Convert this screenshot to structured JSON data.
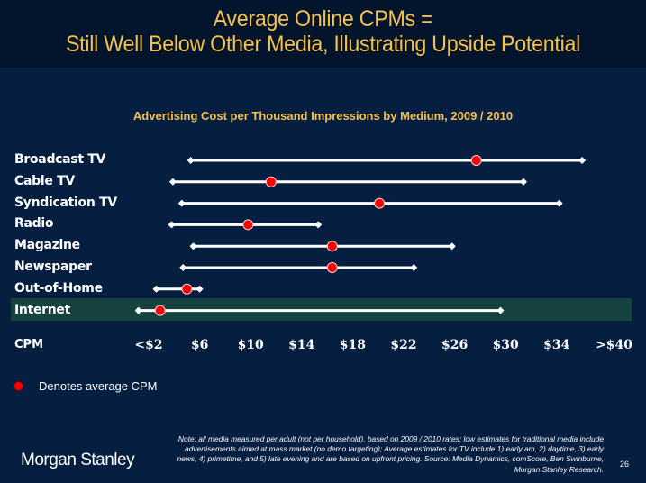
{
  "header": {
    "title_line1": "Average Online CPMs =",
    "title_line2": "Still Well Below Other Media, Illustrating Upside Potential"
  },
  "chart_data": {
    "type": "range-dot",
    "title": "Advertising Cost per Thousand Impressions by Medium, 2009 / 2010",
    "xlabel": "CPM",
    "x_unit": "USD",
    "xlim": [
      2,
      38
    ],
    "x_ticks": [
      {
        "label": "<$2",
        "value": 2
      },
      {
        "label": "$6",
        "value": 6
      },
      {
        "label": "$10",
        "value": 10
      },
      {
        "label": "$14",
        "value": 14
      },
      {
        "label": "$18",
        "value": 18
      },
      {
        "label": "$22",
        "value": 22
      },
      {
        "label": "$26",
        "value": 26
      },
      {
        "label": "$30",
        "value": 30
      },
      {
        "label": "$34",
        "value": 34
      },
      {
        "label": ">$40",
        "value": 38.5
      }
    ],
    "grid": false,
    "categories": [
      "Broadcast TV",
      "Cable TV",
      "Syndication TV",
      "Radio",
      "Magazine",
      "Newspaper",
      "Out-of-Home",
      "Internet"
    ],
    "series": [
      {
        "name": "Low",
        "values": [
          5.3,
          3.9,
          4.6,
          3.8,
          5.5,
          4.7,
          2.6,
          1.2
        ]
      },
      {
        "name": "Average CPM",
        "values": [
          27.7,
          11.6,
          20.1,
          9.8,
          16.4,
          16.4,
          5.0,
          2.9
        ]
      },
      {
        "name": "High",
        "values": [
          36.0,
          31.4,
          34.2,
          15.3,
          25.8,
          22.8,
          6.0,
          29.6
        ]
      }
    ],
    "highlighted_category": "Internet",
    "legend": {
      "label": "Denotes average CPM",
      "placement": "bottom-left"
    }
  },
  "colors": {
    "title": "#f5c14a",
    "avg_dot": "#ff0000",
    "range_line": "#ffffff",
    "highlight_band": "#15413f",
    "background": "#061e40"
  },
  "footer": {
    "logo": "Morgan Stanley",
    "note": "Note: all media measured per adult (not per household), based on 2009 / 2010 rates; low estimates for traditional media include advertisements aimed at mass market (no demo targeting); Average estimates for TV include 1) early am, 2) daytime, 3) early news, 4) primetime, and 5) late evening and are based on upfront pricing. Source: Media Dynamics, comScore, Ben Swinburne, Morgan Stanley Research.",
    "page_number": "26"
  }
}
